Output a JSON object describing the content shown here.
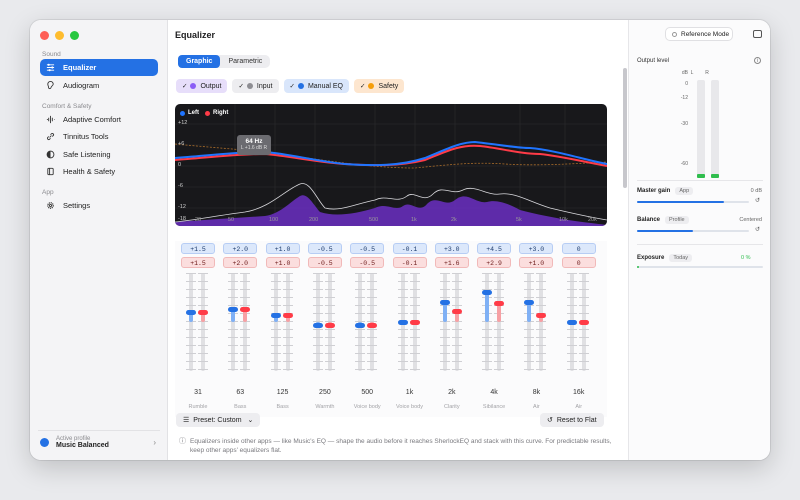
{
  "window": {
    "title": "Equalizer"
  },
  "sidebar": {
    "sections": [
      "Sound",
      "Comfort & Safety",
      "App"
    ],
    "items": [
      {
        "label": "Equalizer",
        "icon": "sliders-icon",
        "active": true
      },
      {
        "label": "Audiogram",
        "icon": "ear-icon"
      },
      {
        "label": "Adaptive Comfort",
        "icon": "waveform-icon"
      },
      {
        "label": "Tinnitus Tools",
        "icon": "link-icon"
      },
      {
        "label": "Safe Listening",
        "icon": "half-circle-icon"
      },
      {
        "label": "Health & Safety",
        "icon": "book-icon"
      },
      {
        "label": "Settings",
        "icon": "gear-icon"
      }
    ],
    "profile": {
      "label": "Active profile",
      "value": "Music Balanced"
    }
  },
  "tabs": {
    "graphic": "Graphic",
    "parametric": "Parametric"
  },
  "filters": [
    {
      "label": "Output",
      "color": "#8b5cf6",
      "bg": "#e7defa"
    },
    {
      "label": "Input",
      "color": "#8e8e93",
      "bg": "#ededf0"
    },
    {
      "label": "Manual EQ",
      "color": "#2471e4",
      "bg": "#d9e6fb"
    },
    {
      "label": "Safety",
      "color": "#f59e0b",
      "bg": "#fde6cf"
    }
  ],
  "graph": {
    "legend": {
      "left": "Left",
      "right": "Right"
    },
    "y_ticks": [
      "+12",
      "+6",
      "0",
      "-6",
      "-12",
      "-18"
    ],
    "x_ticks": [
      "20",
      "50",
      "100",
      "200",
      "500",
      "1k",
      "2k",
      "5k",
      "10k",
      "20k"
    ],
    "tooltip": {
      "freq": "64 Hz",
      "detail": "L +1.6 dB R"
    }
  },
  "bands": [
    {
      "freq": "31",
      "role": "Rumble",
      "left": "+1.5",
      "right": "+1.5",
      "l": 1.5,
      "r": 1.5
    },
    {
      "freq": "63",
      "role": "Bass",
      "left": "+2.0",
      "right": "+2.0",
      "l": 2.0,
      "r": 2.0
    },
    {
      "freq": "125",
      "role": "Bass",
      "left": "+1.0",
      "right": "+1.0",
      "l": 1.0,
      "r": 1.0
    },
    {
      "freq": "250",
      "role": "Warmth",
      "left": "-0.5",
      "right": "-0.5",
      "l": -0.5,
      "r": -0.5
    },
    {
      "freq": "500",
      "role": "Voice body",
      "left": "-0.5",
      "right": "-0.5",
      "l": -0.5,
      "r": -0.5
    },
    {
      "freq": "1k",
      "role": "Voice body",
      "left": "-0.1",
      "right": "-0.1",
      "l": -0.1,
      "r": -0.1
    },
    {
      "freq": "2k",
      "role": "Clarity",
      "left": "+3.0",
      "right": "+1.6",
      "l": 3.0,
      "r": 1.6
    },
    {
      "freq": "4k",
      "role": "Sibilance",
      "left": "+4.5",
      "right": "+2.9",
      "l": 4.5,
      "r": 2.9
    },
    {
      "freq": "8k",
      "role": "Air",
      "left": "+3.0",
      "right": "+1.0",
      "l": 3.0,
      "r": 1.0
    },
    {
      "freq": "16k",
      "role": "Air",
      "left": "0",
      "right": "0",
      "l": 0,
      "r": 0
    }
  ],
  "footer": {
    "preset": "Preset: Custom",
    "reset": "Reset to Flat",
    "note": "Equalizers inside other apps — like Music's EQ — shape the audio before it reaches SherlockEQ and stack with this curve. For predictable results, keep other apps' equalizers flat."
  },
  "right_panel": {
    "reference_mode": "Reference Mode",
    "output_level": "Output level",
    "meter_labels": [
      "dB",
      "L",
      "R"
    ],
    "meter_scale": [
      "0",
      "-12",
      "-30",
      "-60"
    ],
    "master_gain": {
      "label": "Master gain",
      "tag": "App",
      "value": "0 dB",
      "level": 0.78
    },
    "balance": {
      "label": "Balance",
      "tag": "Profile",
      "value": "Centered",
      "level": 0.5
    },
    "exposure": {
      "label": "Exposure",
      "tag": "Today",
      "value": "0 %"
    }
  },
  "colors": {
    "accent": "#2471e4",
    "left": "#1f74ff",
    "right": "#ff3b47",
    "purple": "#6b2fc2"
  }
}
